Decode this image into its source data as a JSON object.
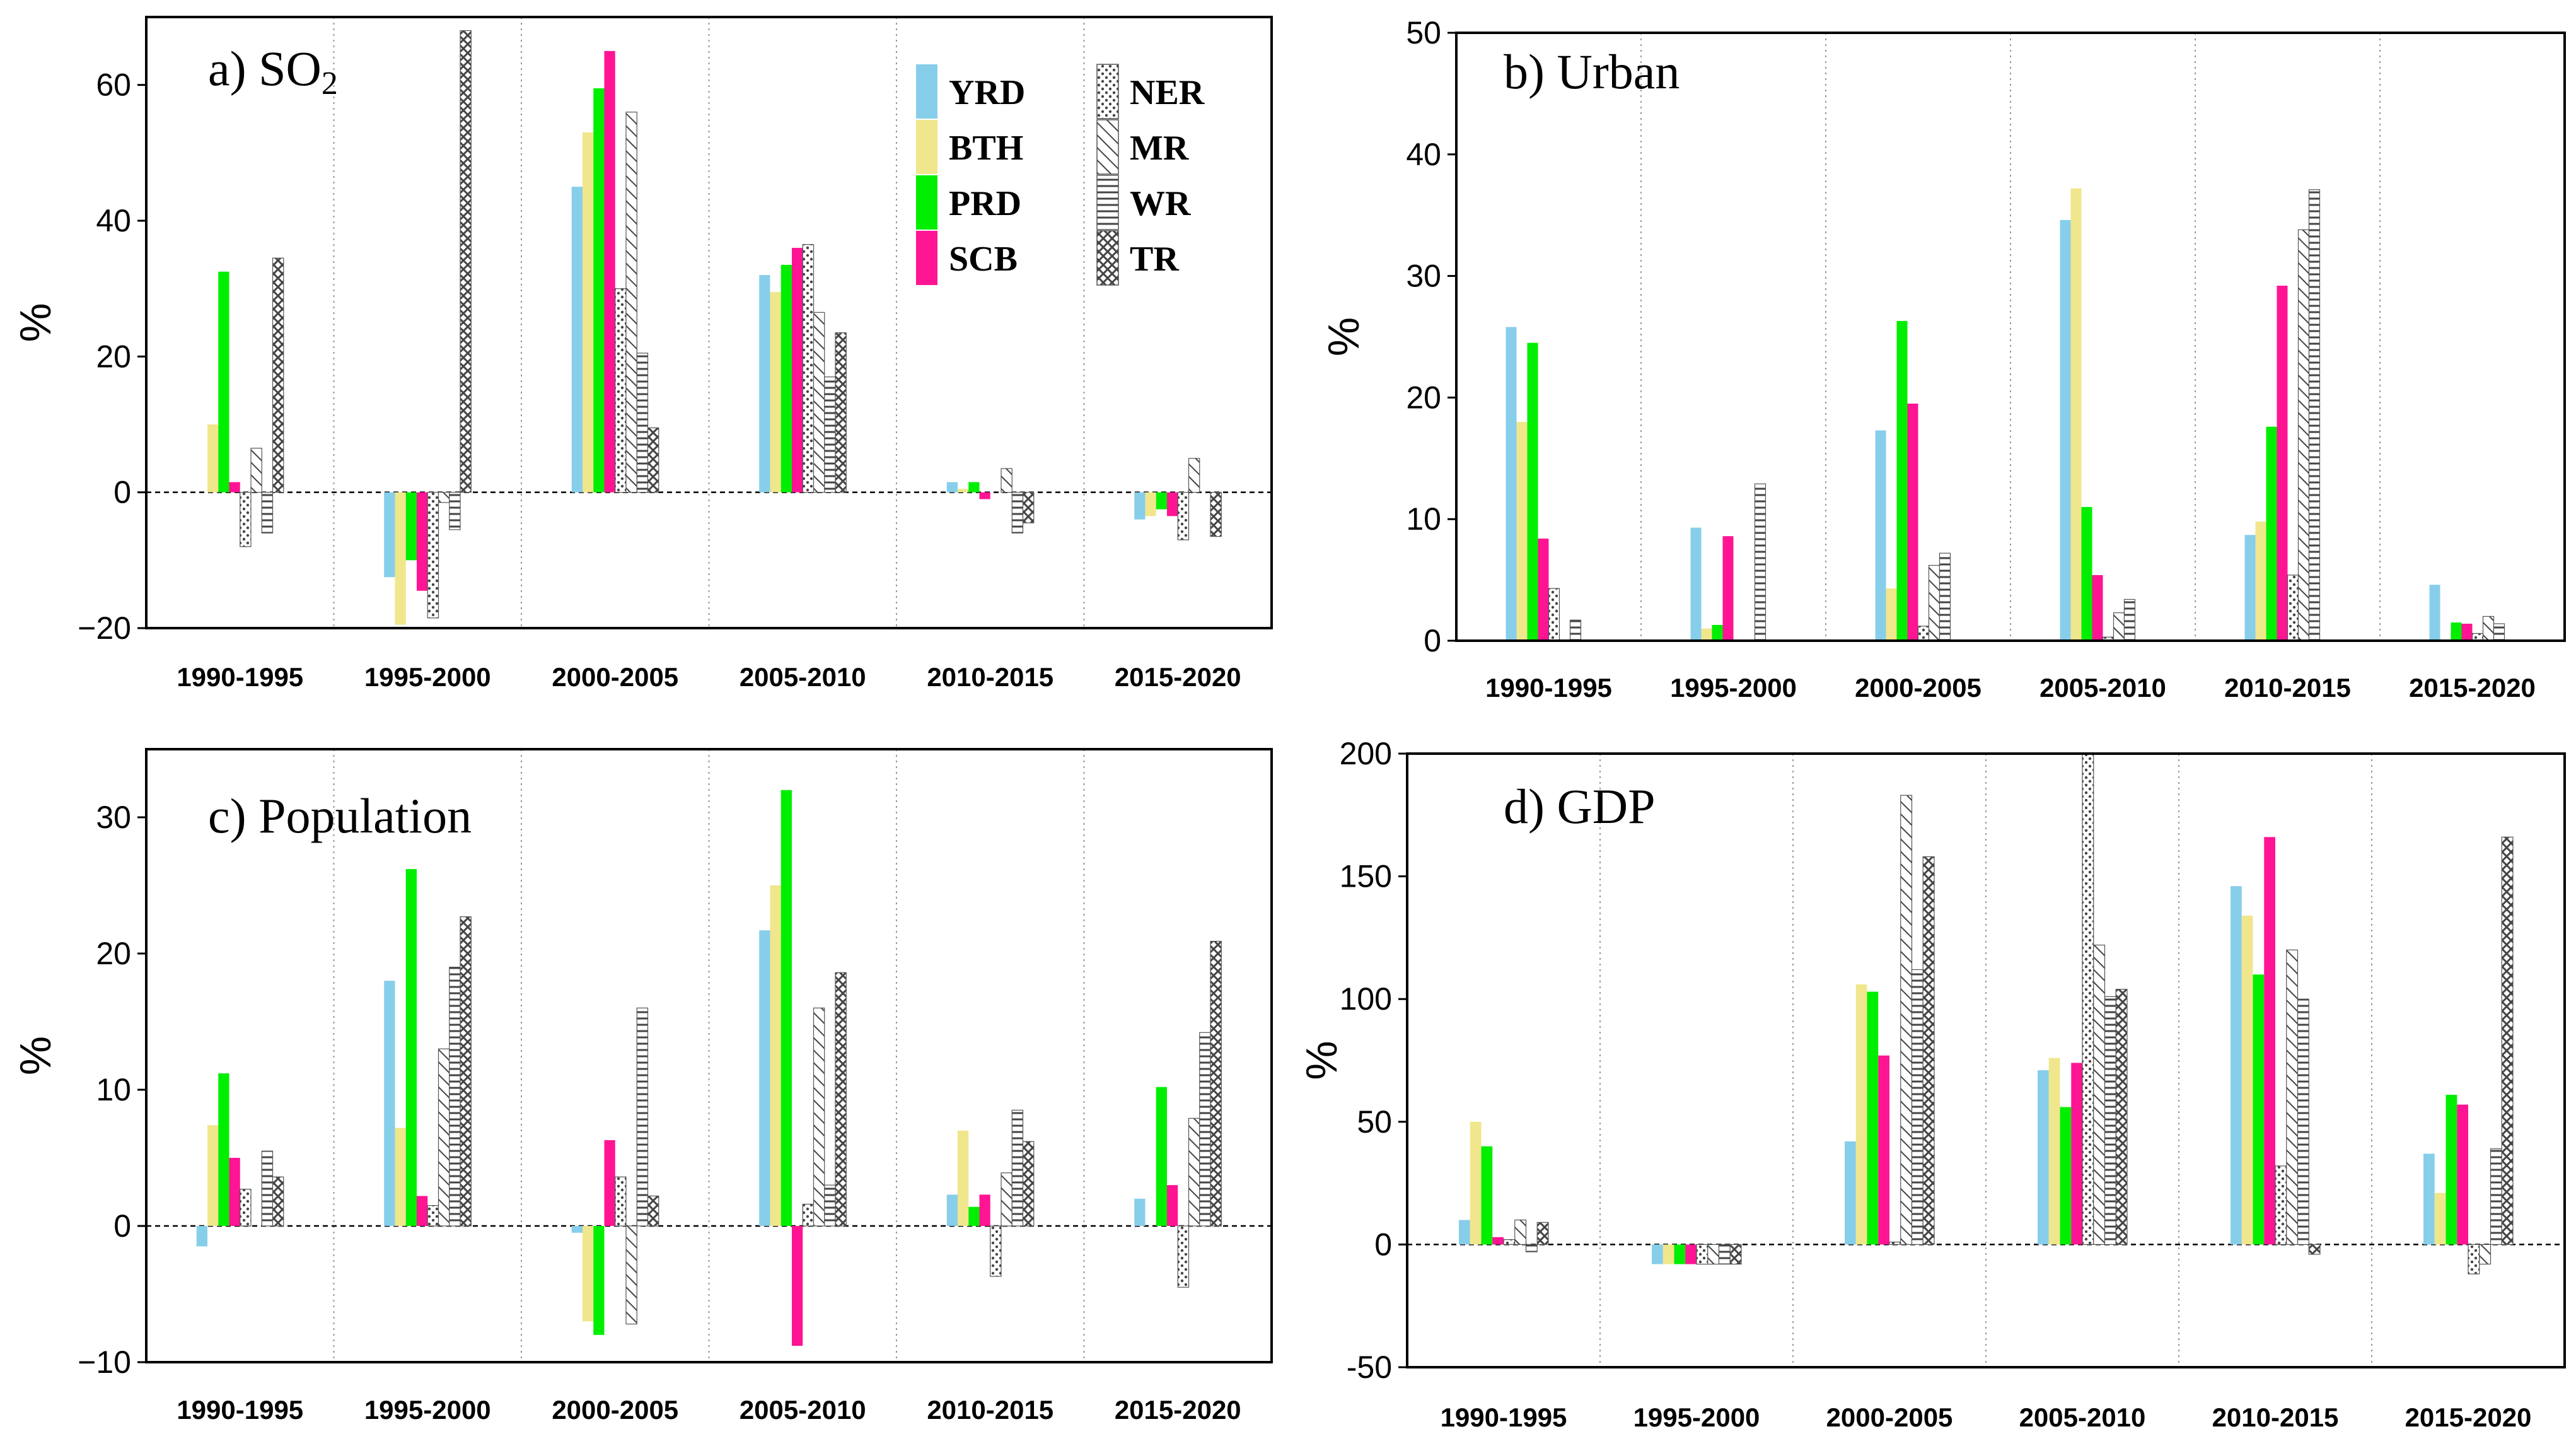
{
  "legend": [
    {
      "label": "YRD",
      "color": "#87CEEB",
      "pattern": "solid"
    },
    {
      "label": "BTH",
      "color": "#F0E68C",
      "pattern": "solid"
    },
    {
      "label": "PRD",
      "color": "#00EE00",
      "pattern": "solid"
    },
    {
      "label": "SCB",
      "color": "#FF1493",
      "pattern": "solid"
    },
    {
      "label": "NER",
      "color": "#555555",
      "pattern": "dots"
    },
    {
      "label": "MR",
      "color": "#555555",
      "pattern": "diag"
    },
    {
      "label": "WR",
      "color": "#555555",
      "pattern": "hlines"
    },
    {
      "label": "TR",
      "color": "#555555",
      "pattern": "cross"
    }
  ],
  "chart_data": [
    {
      "type": "bar",
      "title": "a) SO",
      "title_sub": "2",
      "ylabel": "%",
      "ylim": [
        -20,
        70
      ],
      "yticks": [
        -20,
        0,
        20,
        40,
        60
      ],
      "ytick_labels": [
        "−20",
        "0",
        "20",
        "40",
        "60"
      ],
      "categories": [
        "1990-1995",
        "1995-2000",
        "2000-2005",
        "2005-2010",
        "2010-2015",
        "2015-2020"
      ],
      "series": [
        {
          "name": "YRD",
          "values": [
            0,
            -12.5,
            45,
            32,
            1.5,
            -4
          ]
        },
        {
          "name": "BTH",
          "values": [
            10,
            -19.5,
            53,
            29.5,
            0.5,
            -3.5
          ]
        },
        {
          "name": "PRD",
          "values": [
            32.5,
            -10,
            59.5,
            33.5,
            1.5,
            -2.5
          ]
        },
        {
          "name": "SCB",
          "values": [
            1.5,
            -14.5,
            65,
            36,
            -1,
            -3.5
          ]
        },
        {
          "name": "NER",
          "values": [
            -8,
            -18.5,
            30,
            36.5,
            0,
            -7
          ]
        },
        {
          "name": "MR",
          "values": [
            6.5,
            -1.5,
            56,
            26.5,
            3.5,
            5
          ]
        },
        {
          "name": "WR",
          "values": [
            -6,
            -5.5,
            20.5,
            17,
            -6,
            0
          ]
        },
        {
          "name": "TR",
          "values": [
            34.5,
            68,
            9.5,
            23.5,
            -4.5,
            -6.5
          ]
        }
      ]
    },
    {
      "type": "bar",
      "title": "b) Urban",
      "ylabel": "%",
      "ylim": [
        0,
        50
      ],
      "yticks": [
        0,
        10,
        20,
        30,
        40,
        50
      ],
      "ytick_labels": [
        "0",
        "10",
        "20",
        "30",
        "40",
        "50"
      ],
      "categories": [
        "1990-1995",
        "1995-2000",
        "2000-2005",
        "2005-2010",
        "2010-2015",
        "2015-2020"
      ],
      "series": [
        {
          "name": "YRD",
          "values": [
            25.8,
            9.3,
            17.3,
            34.6,
            8.7,
            4.6
          ]
        },
        {
          "name": "BTH",
          "values": [
            18,
            1,
            4.3,
            37.2,
            9.8,
            0
          ]
        },
        {
          "name": "PRD",
          "values": [
            24.5,
            1.3,
            26.3,
            11,
            17.6,
            1.5
          ]
        },
        {
          "name": "SCB",
          "values": [
            8.4,
            8.6,
            19.5,
            5.4,
            29.2,
            1.4
          ]
        },
        {
          "name": "NER",
          "values": [
            4.3,
            0,
            1.2,
            0.3,
            5.4,
            0.6
          ]
        },
        {
          "name": "MR",
          "values": [
            0,
            0,
            6.2,
            2.3,
            33.8,
            2
          ]
        },
        {
          "name": "WR",
          "values": [
            1.7,
            12.9,
            7.2,
            3.4,
            37.1,
            1.4
          ]
        },
        {
          "name": "TR",
          "values": [
            0,
            0,
            0,
            0,
            0,
            0
          ]
        }
      ]
    },
    {
      "type": "bar",
      "title": "c) Population",
      "ylabel": "%",
      "ylim": [
        -10,
        35
      ],
      "yticks": [
        -10,
        0,
        10,
        20,
        30
      ],
      "ytick_labels": [
        "−10",
        "0",
        "10",
        "20",
        "30"
      ],
      "categories": [
        "1990-1995",
        "1995-2000",
        "2000-2005",
        "2005-2010",
        "2010-2015",
        "2015-2020"
      ],
      "series": [
        {
          "name": "YRD",
          "values": [
            -1.5,
            18,
            -0.5,
            21.7,
            2.3,
            2
          ]
        },
        {
          "name": "BTH",
          "values": [
            7.4,
            7.2,
            -7,
            25,
            7,
            0
          ]
        },
        {
          "name": "PRD",
          "values": [
            11.2,
            26.2,
            -8,
            32,
            1.4,
            10.2
          ]
        },
        {
          "name": "SCB",
          "values": [
            5,
            2.2,
            6.3,
            -8.8,
            2.3,
            3
          ]
        },
        {
          "name": "NER",
          "values": [
            2.7,
            1.5,
            3.6,
            1.6,
            -3.7,
            -4.5
          ]
        },
        {
          "name": "MR",
          "values": [
            0,
            13,
            -7.2,
            16,
            3.9,
            7.9
          ]
        },
        {
          "name": "WR",
          "values": [
            5.5,
            19,
            16,
            3,
            8.5,
            14.2
          ]
        },
        {
          "name": "TR",
          "values": [
            3.6,
            22.7,
            2.2,
            18.6,
            6.2,
            20.9
          ]
        }
      ]
    },
    {
      "type": "bar",
      "title": "d) GDP",
      "ylabel": "%",
      "ylim": [
        -50,
        200
      ],
      "yticks": [
        -50,
        0,
        50,
        100,
        150,
        200
      ],
      "ytick_labels": [
        "-50",
        "0",
        "50",
        "100",
        "150",
        "200"
      ],
      "categories": [
        "1990-1995",
        "1995-2000",
        "2000-2005",
        "2005-2010",
        "2010-2015",
        "2015-2020"
      ],
      "series": [
        {
          "name": "YRD",
          "values": [
            10,
            -8,
            42,
            71,
            146,
            37
          ]
        },
        {
          "name": "BTH",
          "values": [
            50,
            -8,
            106,
            76,
            134,
            21
          ]
        },
        {
          "name": "PRD",
          "values": [
            40,
            -8,
            103,
            56,
            110,
            61
          ]
        },
        {
          "name": "SCB",
          "values": [
            3,
            -8,
            77,
            74,
            166,
            57
          ]
        },
        {
          "name": "NER",
          "values": [
            2,
            -8,
            1,
            200,
            32,
            -12
          ]
        },
        {
          "name": "MR",
          "values": [
            10,
            -8,
            183,
            122,
            120,
            -8
          ]
        },
        {
          "name": "WR",
          "values": [
            -3,
            -8,
            112,
            101,
            100,
            39
          ]
        },
        {
          "name": "TR",
          "values": [
            9,
            -8,
            158,
            104,
            -4,
            166
          ]
        }
      ]
    }
  ]
}
